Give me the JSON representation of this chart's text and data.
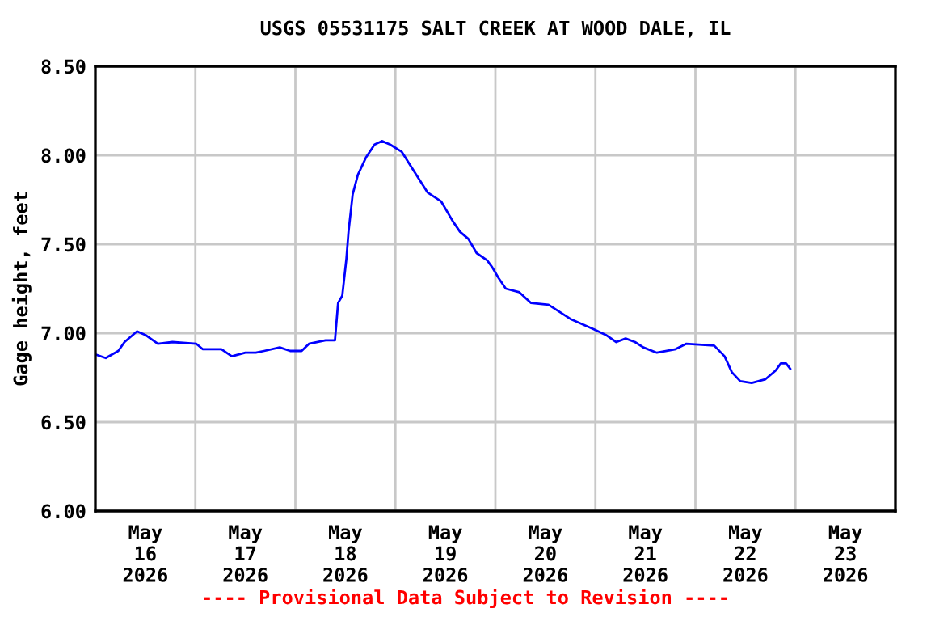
{
  "chart_data": {
    "type": "line",
    "title": "USGS 05531175 SALT CREEK AT WOOD DALE, IL",
    "ylabel": "Gage height, feet",
    "annotations": [
      "---- Provisional Data Subject to Revision ----"
    ],
    "x": [
      "2026-05-16T00:00",
      "2026-05-16T02:30",
      "2026-05-16T05:30",
      "2026-05-16T07:00",
      "2026-05-16T10:00",
      "2026-05-16T12:00",
      "2026-05-16T15:00",
      "2026-05-16T18:30",
      "2026-05-17T00:15",
      "2026-05-17T01:45",
      "2026-05-17T06:15",
      "2026-05-17T08:45",
      "2026-05-17T12:00",
      "2026-05-17T14:30",
      "2026-05-17T16:30",
      "2026-05-17T20:15",
      "2026-05-17T22:45",
      "2026-05-18T01:30",
      "2026-05-18T03:15",
      "2026-05-18T07:15",
      "2026-05-18T09:30",
      "2026-05-18T10:15",
      "2026-05-18T11:15",
      "2026-05-18T12:15",
      "2026-05-18T12:45",
      "2026-05-18T13:45",
      "2026-05-18T15:00",
      "2026-05-18T17:00",
      "2026-05-18T19:00",
      "2026-05-18T20:45",
      "2026-05-18T22:45",
      "2026-05-19T01:30",
      "2026-05-19T04:45",
      "2026-05-19T07:45",
      "2026-05-19T11:00",
      "2026-05-19T13:45",
      "2026-05-19T15:30",
      "2026-05-19T17:30",
      "2026-05-19T19:30",
      "2026-05-19T22:00",
      "2026-05-19T23:15",
      "2026-05-20T00:45",
      "2026-05-20T02:30",
      "2026-05-20T05:45",
      "2026-05-20T08:30",
      "2026-05-20T12:45",
      "2026-05-20T18:00",
      "2026-05-20T23:45",
      "2026-05-21T02:30",
      "2026-05-21T05:00",
      "2026-05-21T07:15",
      "2026-05-21T09:30",
      "2026-05-21T11:30",
      "2026-05-21T14:45",
      "2026-05-21T19:15",
      "2026-05-21T21:45",
      "2026-05-22T04:30",
      "2026-05-22T07:00",
      "2026-05-22T08:45",
      "2026-05-22T10:45",
      "2026-05-22T13:30",
      "2026-05-22T16:45",
      "2026-05-22T19:15",
      "2026-05-22T20:30",
      "2026-05-22T21:45",
      "2026-05-22T22:45"
    ],
    "series": [
      {
        "color": "#0000ff",
        "values": [
          6.88,
          6.86,
          6.9,
          6.95,
          7.01,
          6.99,
          6.94,
          6.95,
          6.94,
          6.91,
          6.91,
          6.87,
          6.89,
          6.89,
          6.9,
          6.92,
          6.9,
          6.9,
          6.94,
          6.96,
          6.96,
          7.17,
          7.21,
          7.42,
          7.57,
          7.78,
          7.89,
          7.99,
          8.06,
          8.08,
          8.06,
          8.02,
          7.9,
          7.79,
          7.74,
          7.63,
          7.57,
          7.53,
          7.45,
          7.41,
          7.37,
          7.31,
          7.25,
          7.23,
          7.17,
          7.16,
          7.08,
          7.02,
          6.99,
          6.95,
          6.97,
          6.95,
          6.92,
          6.89,
          6.91,
          6.94,
          6.93,
          6.87,
          6.78,
          6.73,
          6.72,
          6.74,
          6.79,
          6.83,
          6.83,
          6.8
        ]
      }
    ],
    "xlim": [
      "2026-05-16",
      "2026-05-24"
    ],
    "xticks": [
      {
        "value": "2026-05-16T12:00",
        "label": "May\n16\n2026"
      },
      {
        "value": "2026-05-17T12:00",
        "label": "May\n17\n2026"
      },
      {
        "value": "2026-05-18T12:00",
        "label": "May\n18\n2026"
      },
      {
        "value": "2026-05-19T12:00",
        "label": "May\n19\n2026"
      },
      {
        "value": "2026-05-20T12:00",
        "label": "May\n20\n2026"
      },
      {
        "value": "2026-05-21T12:00",
        "label": "May\n21\n2026"
      },
      {
        "value": "2026-05-22T12:00",
        "label": "May\n22\n2026"
      },
      {
        "value": "2026-05-23T12:00",
        "label": "May\n23\n2026"
      },
      {
        "value": "2026-05-17",
        "label": null
      },
      {
        "value": "2026-05-18",
        "label": null
      },
      {
        "value": "2026-05-19",
        "label": null
      },
      {
        "value": "2026-05-20",
        "label": null
      },
      {
        "value": "2026-05-21",
        "label": null
      },
      {
        "value": "2026-05-22",
        "label": null
      },
      {
        "value": "2026-05-23",
        "label": null
      }
    ],
    "ylim": [
      6.0,
      8.5
    ],
    "yticks": [
      {
        "value": 6.0,
        "label": "6.00"
      },
      {
        "value": 6.5,
        "label": "6.50"
      },
      {
        "value": 7.0,
        "label": "7.00"
      },
      {
        "value": 7.5,
        "label": "7.50"
      },
      {
        "value": 8.0,
        "label": "8.00"
      },
      {
        "value": 8.5,
        "label": "8.50"
      }
    ],
    "grid": true,
    "legend": false,
    "marker": "none",
    "line_style": "solid"
  }
}
